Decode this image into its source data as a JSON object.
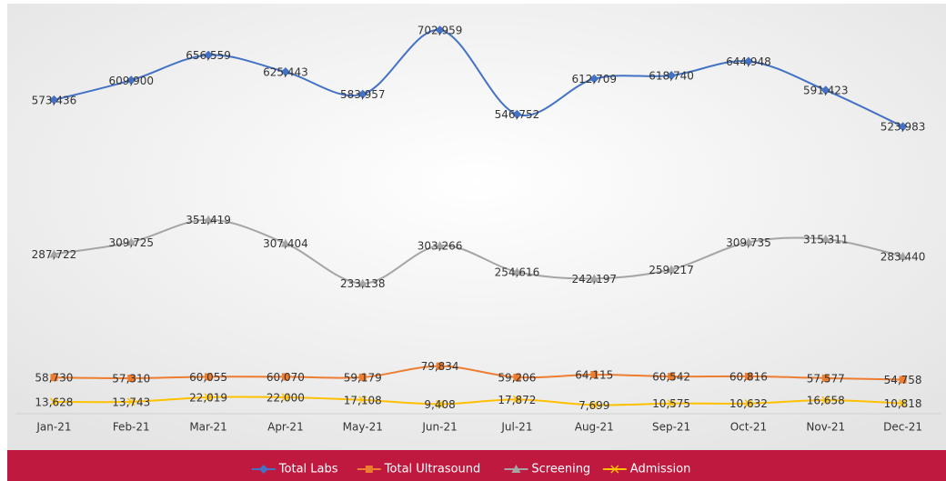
{
  "chart_data": {
    "type": "line",
    "categories": [
      "Jan-21",
      "Feb-21",
      "Mar-21",
      "Apr-21",
      "May-21",
      "Jun-21",
      "Jul-21",
      "Aug-21",
      "Sep-21",
      "Oct-21",
      "Nov-21",
      "Dec-21"
    ],
    "ylim": [
      0,
      725000
    ],
    "series": [
      {
        "name": "Total Labs",
        "color": "#4472c4",
        "marker": "diamond",
        "values": [
          573436,
          609900,
          656559,
          625443,
          583957,
          702959,
          546752,
          612709,
          618740,
          644948,
          591423,
          523983
        ],
        "value_labels": [
          "573,436",
          "609,900",
          "656,559",
          "625,443",
          "583,957",
          "702,959",
          "546,752",
          "612,709",
          "618,740",
          "644,948",
          "591,423",
          "523,983"
        ]
      },
      {
        "name": "Total Ultrasound",
        "color": "#ed7d31",
        "marker": "square",
        "values": [
          58730,
          57310,
          60055,
          60070,
          59179,
          79834,
          59206,
          64115,
          60542,
          60816,
          57577,
          54758
        ],
        "value_labels": [
          "58,730",
          "57,310",
          "60,055",
          "60,070",
          "59,179",
          "79,834",
          "59,206",
          "64,115",
          "60,542",
          "60,816",
          "57,577",
          "54,758"
        ]
      },
      {
        "name": "Screening",
        "color": "#a5a5a5",
        "marker": "triangle",
        "values": [
          287722,
          309725,
          351419,
          307404,
          233138,
          303266,
          254616,
          242197,
          259217,
          309735,
          315311,
          283440
        ],
        "value_labels": [
          "287,722",
          "309,725",
          "351,419",
          "307,404",
          "233,138",
          "303,266",
          "254,616",
          "242,197",
          "259,217",
          "309,735",
          "315,311",
          "283,440"
        ]
      },
      {
        "name": "Admission",
        "color": "#ffc000",
        "marker": "x",
        "values": [
          13628,
          13743,
          22019,
          22000,
          17108,
          9408,
          17872,
          7699,
          10575,
          10632,
          16658,
          10818
        ],
        "value_labels": [
          "13,628",
          "13,743",
          "22,019",
          "22,000",
          "17,108",
          "9,408",
          "17,872",
          "7,699",
          "10,575",
          "10,632",
          "16,658",
          "10,818"
        ]
      }
    ]
  }
}
